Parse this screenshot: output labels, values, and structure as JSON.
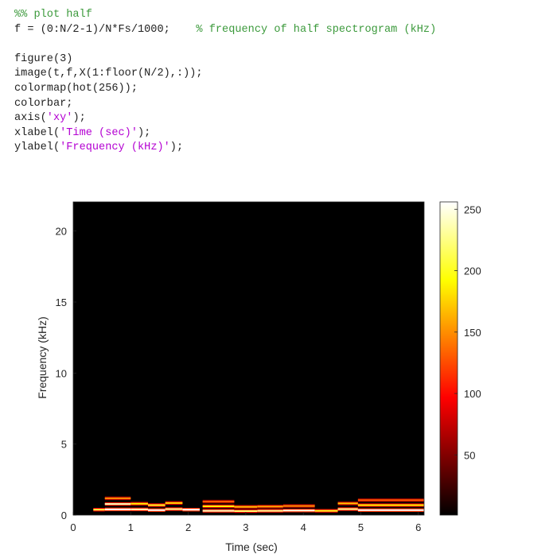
{
  "code": {
    "lines": [
      [
        {
          "t": "%% plot half",
          "k": "comment"
        }
      ],
      [
        {
          "t": "f = (0:N/2-1)/N*Fs/1000;    ",
          "k": "plain"
        },
        {
          "t": "% frequency of half spectrogram (kHz)",
          "k": "comment"
        }
      ],
      [],
      [
        {
          "t": "figure(3)",
          "k": "plain"
        }
      ],
      [
        {
          "t": "image(t,f,X(1:floor(N/2),:));",
          "k": "plain"
        }
      ],
      [
        {
          "t": "colormap(hot(256));",
          "k": "plain"
        }
      ],
      [
        {
          "t": "colorbar;",
          "k": "plain"
        }
      ],
      [
        {
          "t": "axis(",
          "k": "plain"
        },
        {
          "t": "'xy'",
          "k": "string"
        },
        {
          "t": ");",
          "k": "plain"
        }
      ],
      [
        {
          "t": "xlabel(",
          "k": "plain"
        },
        {
          "t": "'Time (sec)'",
          "k": "string"
        },
        {
          "t": ");",
          "k": "plain"
        }
      ],
      [
        {
          "t": "ylabel(",
          "k": "plain"
        },
        {
          "t": "'Frequency (kHz)'",
          "k": "string"
        },
        {
          "t": ");",
          "k": "plain"
        }
      ]
    ]
  },
  "colors": {
    "comment": "#3c9a3c",
    "string": "#b400d2",
    "code": "#222222",
    "background": "#000000"
  },
  "chart_data": {
    "type": "heatmap",
    "xlabel": "Time (sec)",
    "ylabel": "Frequency (kHz)",
    "xlim": [
      0,
      6.1
    ],
    "ylim": [
      0,
      22.05
    ],
    "xticks": [
      0,
      1,
      2,
      3,
      4,
      5,
      6
    ],
    "yticks": [
      0,
      5,
      10,
      15,
      20
    ],
    "colormap": "hot",
    "colorbar": {
      "range": [
        1,
        256
      ],
      "ticks": [
        50,
        100,
        150,
        200,
        250
      ]
    },
    "bands": [
      {
        "t0": 0.35,
        "t1": 0.55,
        "f": 0.38,
        "v": 210
      },
      {
        "t0": 0.55,
        "t1": 1.0,
        "f": 0.4,
        "v": 256
      },
      {
        "t0": 0.55,
        "t1": 1.0,
        "f": 0.78,
        "v": 240
      },
      {
        "t0": 0.55,
        "t1": 1.0,
        "f": 1.18,
        "v": 150
      },
      {
        "t0": 1.0,
        "t1": 1.3,
        "f": 0.4,
        "v": 240
      },
      {
        "t0": 1.0,
        "t1": 1.3,
        "f": 0.8,
        "v": 190
      },
      {
        "t0": 1.3,
        "t1": 1.6,
        "f": 0.35,
        "v": 256
      },
      {
        "t0": 1.3,
        "t1": 1.6,
        "f": 0.7,
        "v": 200
      },
      {
        "t0": 1.6,
        "t1": 1.9,
        "f": 0.42,
        "v": 230
      },
      {
        "t0": 1.6,
        "t1": 1.9,
        "f": 0.85,
        "v": 180
      },
      {
        "t0": 1.9,
        "t1": 2.2,
        "f": 0.38,
        "v": 256
      },
      {
        "t0": 2.25,
        "t1": 2.8,
        "f": 0.3,
        "v": 240
      },
      {
        "t0": 2.25,
        "t1": 2.8,
        "f": 0.62,
        "v": 190
      },
      {
        "t0": 2.25,
        "t1": 2.8,
        "f": 0.95,
        "v": 130
      },
      {
        "t0": 2.8,
        "t1": 3.2,
        "f": 0.28,
        "v": 220
      },
      {
        "t0": 2.8,
        "t1": 3.2,
        "f": 0.58,
        "v": 170
      },
      {
        "t0": 3.2,
        "t1": 3.65,
        "f": 0.3,
        "v": 230
      },
      {
        "t0": 3.2,
        "t1": 3.65,
        "f": 0.6,
        "v": 160
      },
      {
        "t0": 3.65,
        "t1": 4.2,
        "f": 0.32,
        "v": 250
      },
      {
        "t0": 3.65,
        "t1": 4.2,
        "f": 0.64,
        "v": 150
      },
      {
        "t0": 4.2,
        "t1": 4.6,
        "f": 0.3,
        "v": 200
      },
      {
        "t0": 4.6,
        "t1": 4.95,
        "f": 0.42,
        "v": 230
      },
      {
        "t0": 4.6,
        "t1": 4.95,
        "f": 0.82,
        "v": 170
      },
      {
        "t0": 4.95,
        "t1": 6.1,
        "f": 0.35,
        "v": 256
      },
      {
        "t0": 4.95,
        "t1": 6.1,
        "f": 0.7,
        "v": 190
      },
      {
        "t0": 4.95,
        "t1": 6.1,
        "f": 1.05,
        "v": 130
      }
    ]
  }
}
